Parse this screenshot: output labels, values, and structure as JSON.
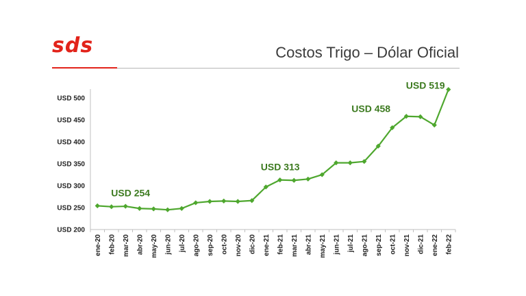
{
  "header": {
    "logo_text": "sds",
    "title": "Costos Trigo – Dólar Oficial",
    "accent_color": "#e2231a"
  },
  "chart_data": {
    "type": "line",
    "title": "Costos Trigo – Dólar Oficial",
    "xlabel": "",
    "ylabel": "",
    "categories": [
      "ene-20",
      "feb-20",
      "mar-20",
      "abr-20",
      "may-20",
      "jun-20",
      "jul-20",
      "ago-20",
      "sep-20",
      "oct-20",
      "nov-20",
      "dic-20",
      "ene-21",
      "feb-21",
      "mar-21",
      "abr-21",
      "may-21",
      "jun-21",
      "jul-21",
      "ago-21",
      "sep-21",
      "oct-21",
      "nov-21",
      "dic-21",
      "ene-22",
      "feb-22"
    ],
    "series": [
      {
        "values": [
          254,
          252,
          253,
          248,
          247,
          245,
          248,
          261,
          264,
          265,
          264,
          266,
          297,
          313,
          312,
          315,
          325,
          352,
          352,
          355,
          390,
          432,
          458,
          457,
          438,
          519
        ],
        "color": "#4ea72e"
      }
    ],
    "ylim": [
      200,
      520
    ],
    "yticks": [
      200,
      250,
      300,
      350,
      400,
      450,
      500
    ],
    "ytick_prefix": "USD ",
    "grid": false,
    "annotations": [
      {
        "category": "ene-20",
        "text": "USD 254"
      },
      {
        "category": "feb-21",
        "text": "USD 313"
      },
      {
        "category": "nov-21",
        "text": "USD 458"
      },
      {
        "category": "feb-22",
        "text": "USD 519"
      }
    ]
  }
}
